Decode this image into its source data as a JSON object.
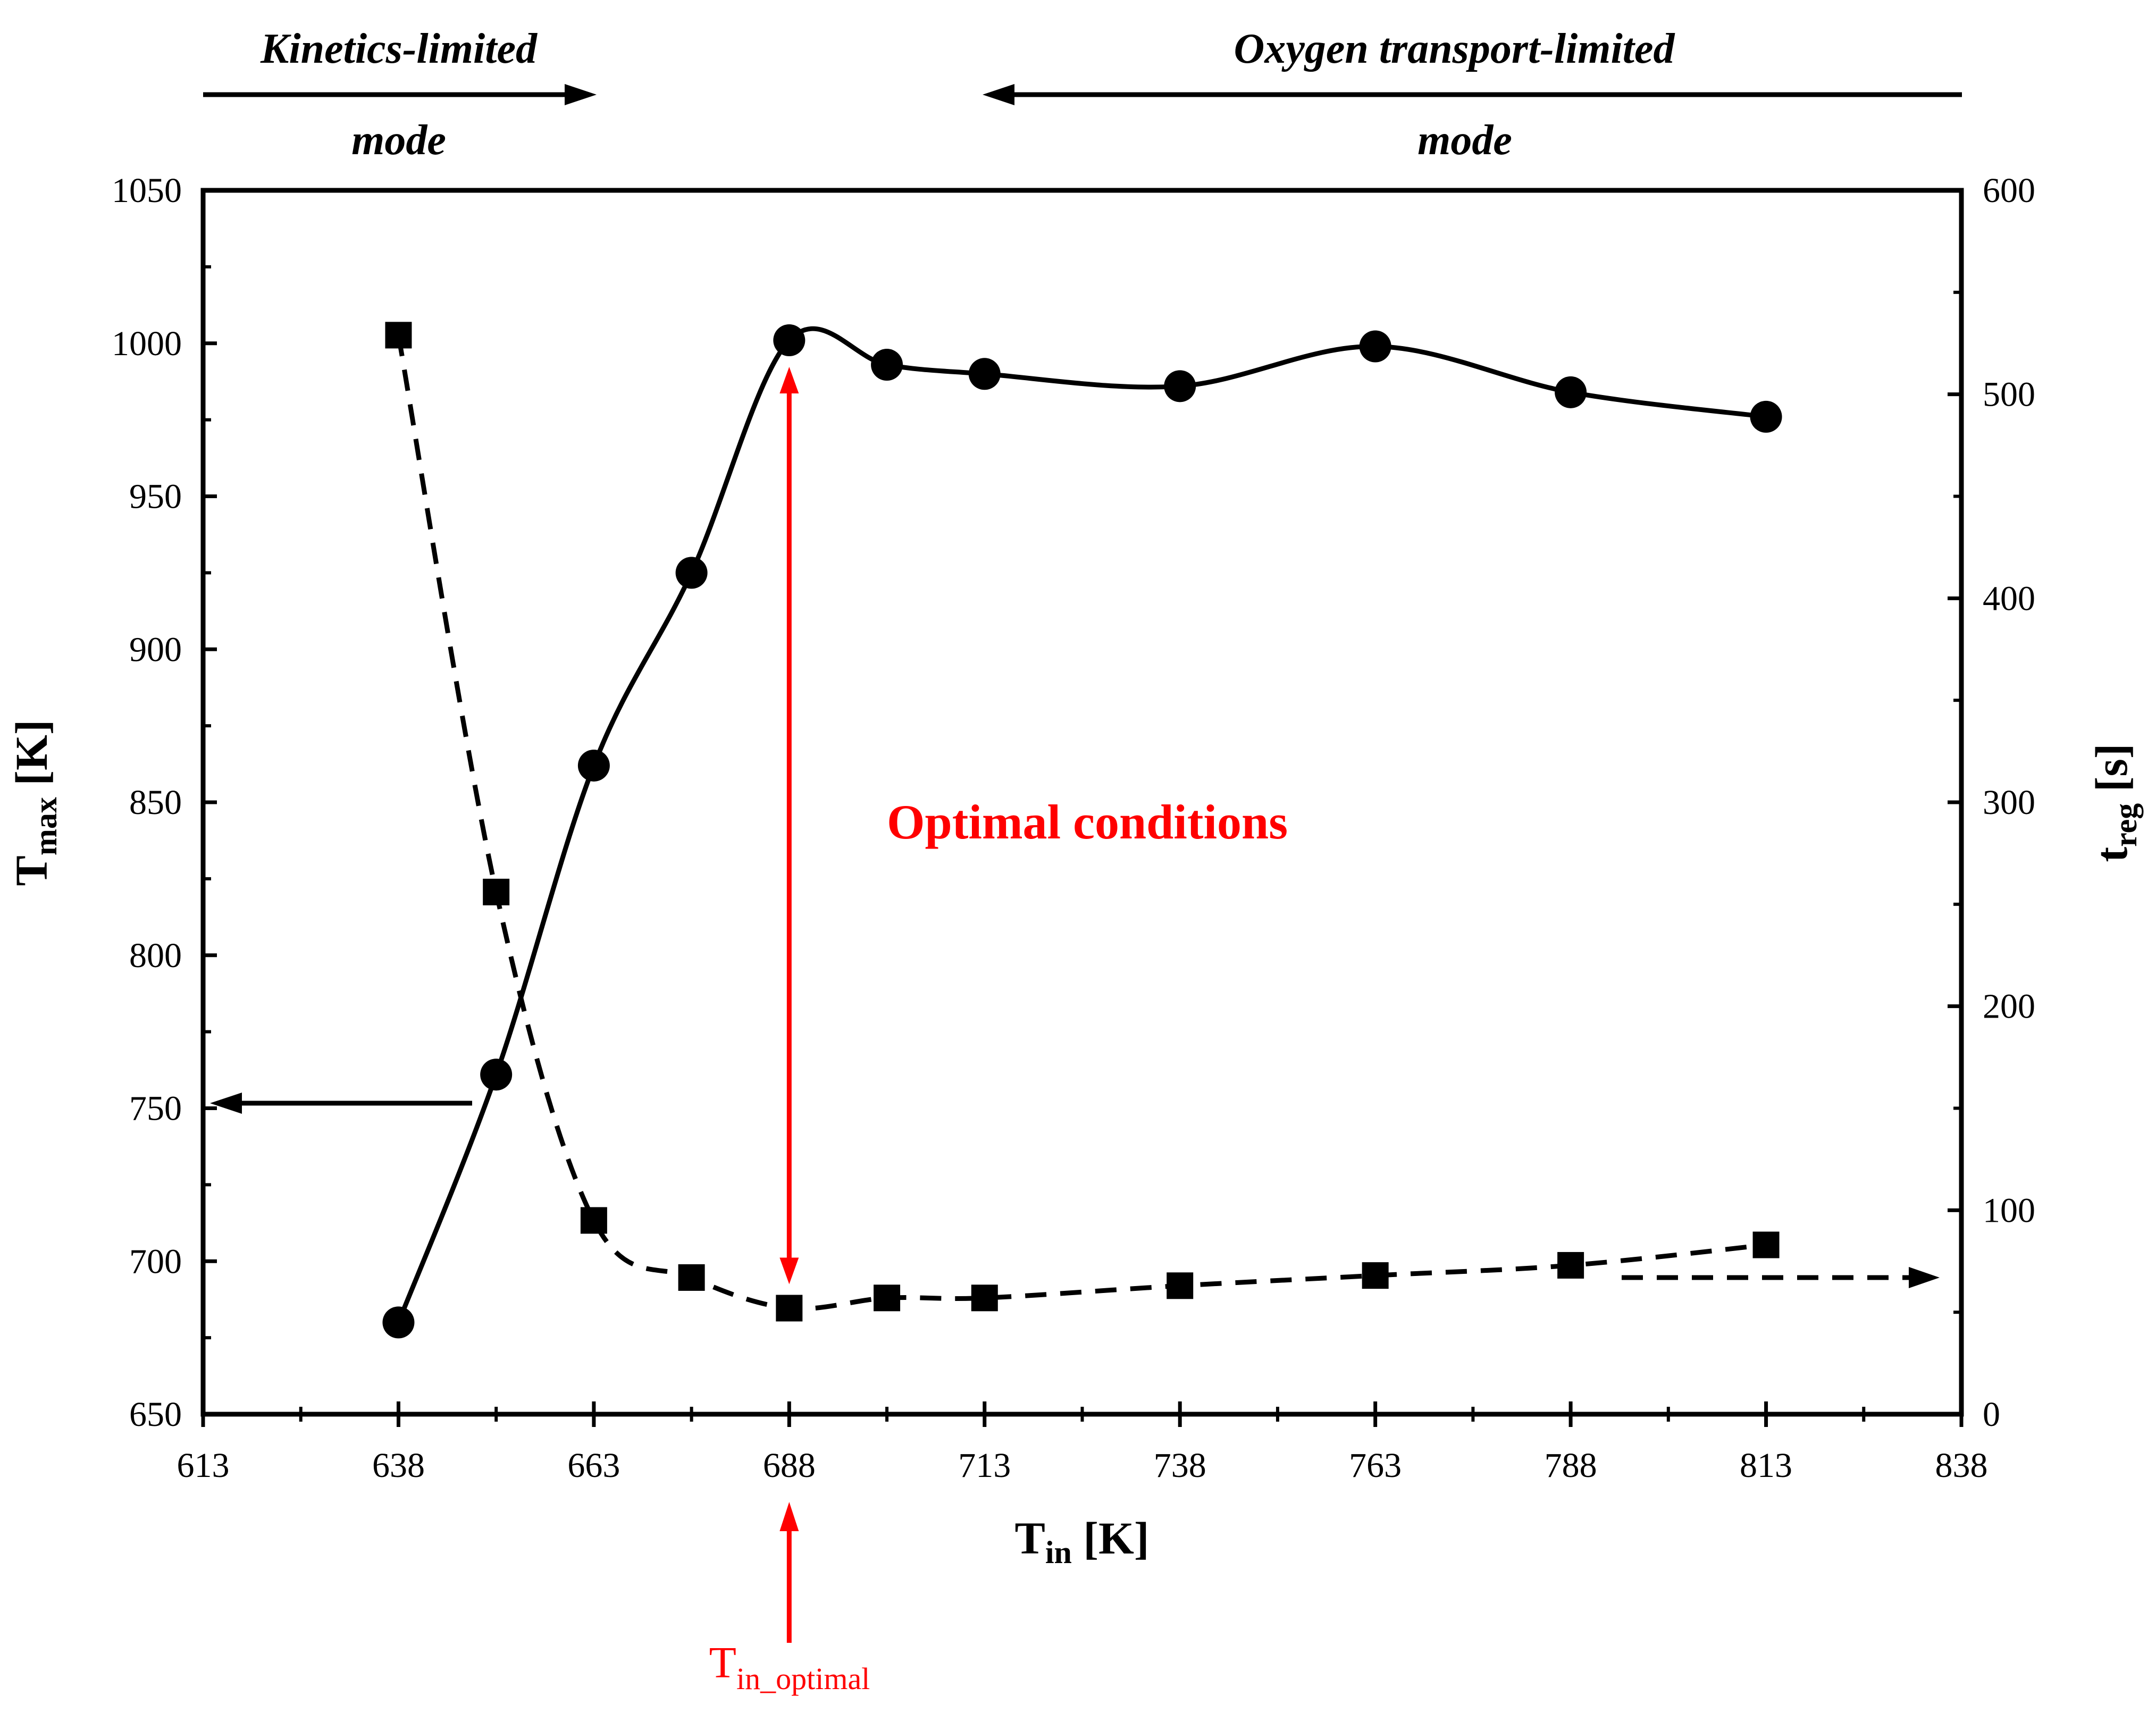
{
  "colors": {
    "axis": "#000000",
    "series": "#000000",
    "annotation": "#ff0000"
  },
  "chart_data": {
    "type": "line",
    "title": "",
    "xlabel": {
      "main": "T",
      "sub": "in",
      "unit": " [K]"
    },
    "ylabel": {
      "main": "T",
      "sub": "max",
      "unit": " [K]"
    },
    "y2label": {
      "main": "t",
      "sub": "reg",
      "unit": " [s]"
    },
    "xlim": [
      613,
      838
    ],
    "ylim": [
      650,
      1050
    ],
    "y2lim": [
      0,
      600
    ],
    "xticks": [
      613,
      638,
      663,
      688,
      713,
      738,
      763,
      788,
      813,
      838
    ],
    "yticks": [
      650,
      700,
      750,
      800,
      850,
      900,
      950,
      1000,
      1050
    ],
    "y2ticks": [
      0,
      100,
      200,
      300,
      400,
      500,
      600
    ],
    "series": [
      {
        "name": "Tmax",
        "axis": "left",
        "marker": "circle",
        "line": "solid",
        "x": [
          638,
          650.5,
          663,
          675.5,
          688,
          700.5,
          713,
          738,
          763,
          788,
          813
        ],
        "y": [
          680,
          761,
          862,
          925,
          1001,
          993,
          990,
          986,
          999,
          984,
          976
        ]
      },
      {
        "name": "treg",
        "axis": "right",
        "marker": "square",
        "line": "dashed",
        "x": [
          638,
          650.5,
          663,
          675.5,
          688,
          700.5,
          713,
          738,
          763,
          788,
          813
        ],
        "y": [
          529,
          256,
          95,
          67,
          52,
          57,
          57,
          63,
          68,
          73,
          83
        ]
      }
    ],
    "annotations": {
      "kinetics_top": "Kinetics-limited",
      "kinetics_bottom": "mode",
      "oxygen_top": "Oxygen transport-limited",
      "oxygen_bottom": "mode",
      "optimal_conditions": "Optimal conditions",
      "optimal_label_main": "T",
      "optimal_label_sub": "in_optimal",
      "optimal_x": 688
    }
  }
}
